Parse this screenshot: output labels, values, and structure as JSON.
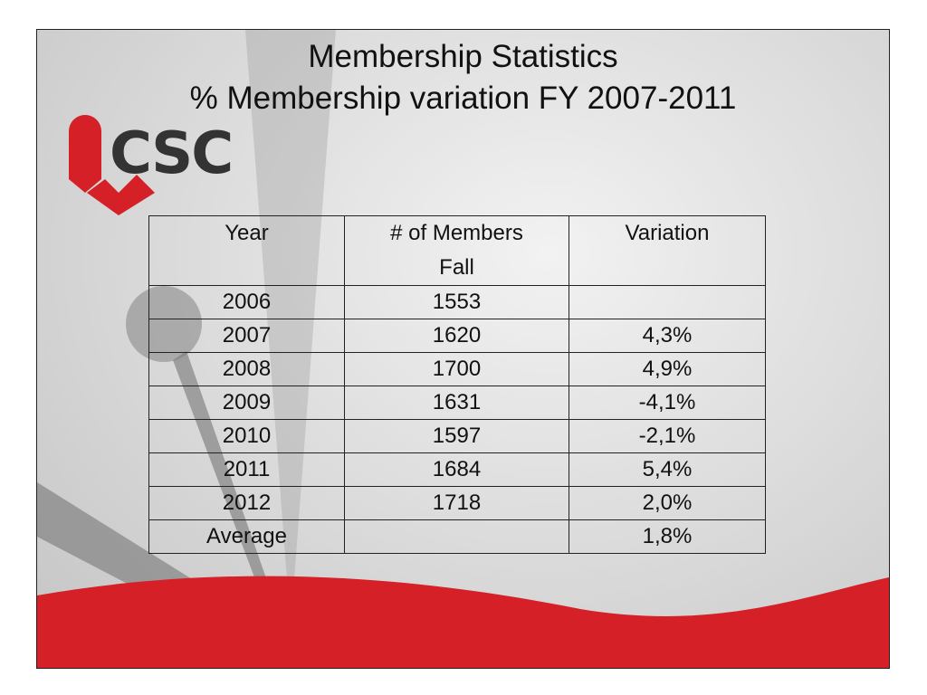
{
  "slide": {
    "title_lines": [
      "Membership Statistics",
      "% Membership variation FY 2007-2011"
    ],
    "logo_text": "CSC",
    "table": {
      "header": [
        "Year",
        "# of Members Fall",
        "Variation"
      ],
      "rows": [
        [
          "2006",
          "1553",
          null
        ],
        [
          "2007",
          "1620",
          "4,3%"
        ],
        [
          "2008",
          "1700",
          "4,9%"
        ],
        [
          "2009",
          "1631",
          "-4,1%"
        ],
        [
          "2010",
          "1597",
          "-2,1%"
        ],
        [
          "2011",
          "1684",
          "5,4%"
        ],
        [
          "2012",
          "1718",
          "2,0%"
        ],
        [
          "Average",
          null,
          "1,8%"
        ]
      ]
    }
  }
}
